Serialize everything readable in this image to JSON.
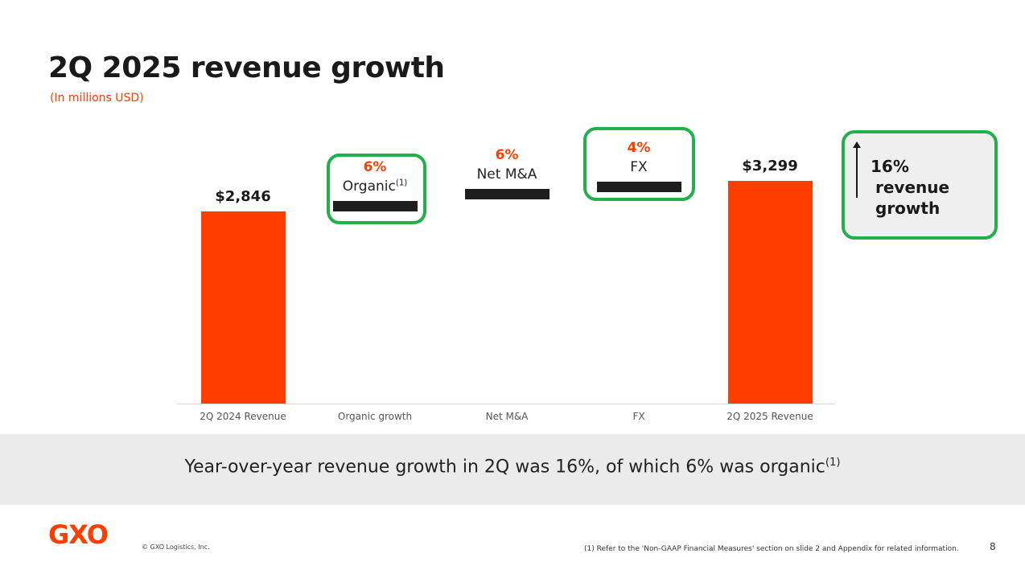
{
  "title": "2Q 2025 revenue growth",
  "subtitle": "(In millions USD)",
  "chart_data": {
    "type": "waterfall",
    "categories": [
      "2Q 2024 Revenue",
      "Organic growth",
      "Net M&A",
      "FX",
      "2Q 2025 Revenue"
    ],
    "values": [
      2846,
      171,
      171,
      111,
      3299
    ],
    "kinds": [
      "total",
      "delta",
      "delta",
      "delta",
      "total"
    ],
    "value_labels": [
      "$2,846",
      "6%",
      "6%",
      "4%",
      "$3,299"
    ],
    "delta_names": [
      "",
      "Organic",
      "Net M&A",
      "FX",
      ""
    ],
    "delta_footnote": [
      "",
      "(1)",
      "",
      "",
      ""
    ],
    "ylim": [
      0,
      3600
    ]
  },
  "callout": {
    "line1": "16%",
    "line2": "revenue",
    "line3": "growth"
  },
  "banner": {
    "text": "Year-over-year revenue growth in 2Q was 16%, of which 6% was organic",
    "footnote": "(1)"
  },
  "footer": {
    "logo": "GXO",
    "copyright": "© GXO Logistics, Inc.",
    "note": "(1) Refer to the 'Non-GAAP Financial Measures' section on slide 2 and Appendix for related information.",
    "page": "8"
  },
  "colors": {
    "bar": "#ff3d00",
    "delta": "#1e1e1e",
    "highlight": "#22b04b"
  }
}
